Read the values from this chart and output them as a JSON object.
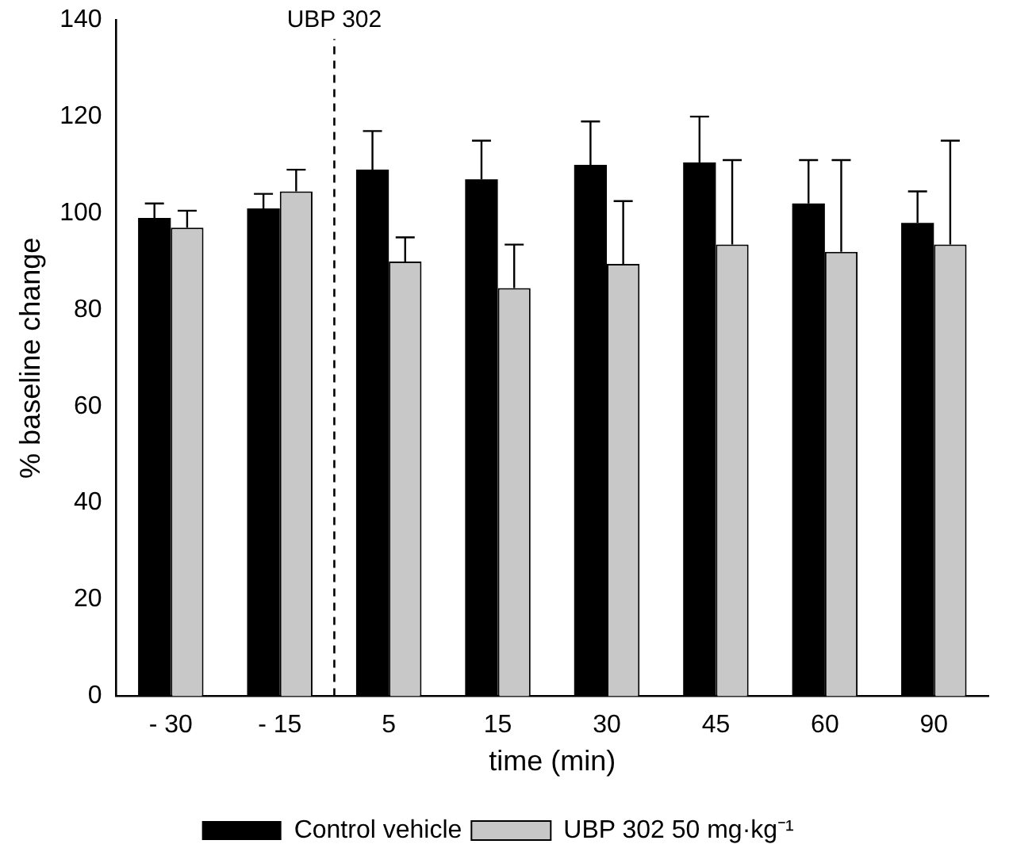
{
  "chart_data": {
    "type": "bar",
    "xlabel": "time (min)",
    "ylabel": "% baseline change",
    "categories": [
      "- 30",
      "- 15",
      "5",
      "15",
      "30",
      "45",
      "60",
      "90"
    ],
    "series": [
      {
        "name": "Control vehicle",
        "color": "#000000",
        "values": [
          99,
          101,
          109,
          107,
          110,
          110.5,
          102,
          98
        ],
        "errors": [
          [
            99,
            102
          ],
          [
            101,
            104
          ],
          [
            109,
            117
          ],
          [
            107,
            115
          ],
          [
            110,
            119
          ],
          [
            110.5,
            120
          ],
          [
            102,
            111
          ],
          [
            98,
            104.5
          ]
        ]
      },
      {
        "name": "UBP 302 50 mg·kg⁻¹",
        "color": "#c8c8c8",
        "values": [
          97,
          104.5,
          90,
          84.5,
          89.5,
          93.5,
          92,
          93.5
        ],
        "errors": [
          [
            97,
            100.5
          ],
          [
            104.5,
            109
          ],
          [
            90,
            95
          ],
          [
            84.5,
            93.5
          ],
          [
            89.5,
            102.5
          ],
          [
            93.5,
            111
          ],
          [
            92,
            111
          ],
          [
            93.5,
            115
          ]
        ]
      }
    ],
    "ylim": [
      0,
      140
    ],
    "yticks": [
      0,
      20,
      40,
      60,
      80,
      100,
      120,
      140
    ],
    "grid": false,
    "legend": "bottom",
    "annotations": [
      "UBP 302"
    ]
  }
}
